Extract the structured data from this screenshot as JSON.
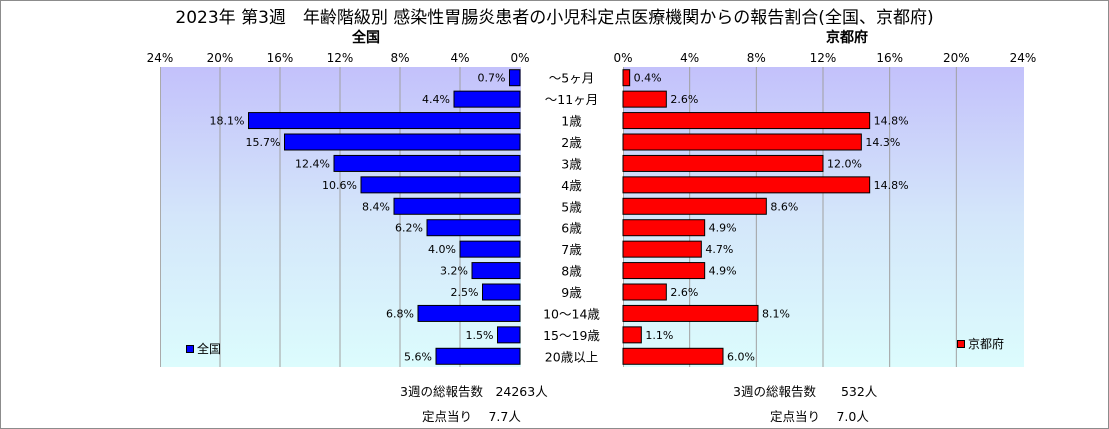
{
  "title": "2023年 第3週　年齢階級別 感染性胃腸炎患者の小児科定点医療機関からの報告割合(全国、京都府)",
  "legend": {
    "national": "全国",
    "kyoto": "京都府"
  },
  "footer": {
    "national_total": "3週の総報告数　24263人",
    "national_per": "定点当り　 7.7人",
    "kyoto_total": "3週の総報告数　　532人",
    "kyoto_per": "定点当り　 7.0人"
  },
  "chart_data": [
    {
      "type": "bar",
      "title": "全国",
      "orientation": "horizontal",
      "direction": "leftward",
      "color": "#0000ff",
      "xlim": [
        0,
        24
      ],
      "ticks": [
        "24%",
        "20%",
        "16%",
        "12%",
        "8%",
        "4%",
        "0%"
      ],
      "categories": [
        "～5ヶ月",
        "～11ヶ月",
        "1歳",
        "2歳",
        "3歳",
        "4歳",
        "5歳",
        "6歳",
        "7歳",
        "8歳",
        "9歳",
        "10～14歳",
        "15～19歳",
        "20歳以上"
      ],
      "values": [
        0.7,
        4.4,
        18.1,
        15.7,
        12.4,
        10.6,
        8.4,
        6.2,
        4.0,
        3.2,
        2.5,
        6.8,
        1.5,
        5.6
      ],
      "labels": [
        "0.7%",
        "4.4%",
        "18.1%",
        "15.7%",
        "12.4%",
        "10.6%",
        "8.4%",
        "6.2%",
        "4.0%",
        "3.2%",
        "2.5%",
        "6.8%",
        "1.5%",
        "5.6%"
      ],
      "legend_position": "bottom-left",
      "grid": true
    },
    {
      "type": "bar",
      "title": "京都府",
      "orientation": "horizontal",
      "direction": "rightward",
      "color": "#ff0000",
      "xlim": [
        0,
        24
      ],
      "ticks": [
        "0%",
        "4%",
        "8%",
        "12%",
        "16%",
        "20%",
        "24%"
      ],
      "categories": [
        "～5ヶ月",
        "～11ヶ月",
        "1歳",
        "2歳",
        "3歳",
        "4歳",
        "5歳",
        "6歳",
        "7歳",
        "8歳",
        "9歳",
        "10～14歳",
        "15～19歳",
        "20歳以上"
      ],
      "values": [
        0.4,
        2.6,
        14.8,
        14.3,
        12.0,
        14.8,
        8.6,
        4.9,
        4.7,
        4.9,
        2.6,
        8.1,
        1.1,
        6.0
      ],
      "labels": [
        "0.4%",
        "2.6%",
        "14.8%",
        "14.3%",
        "12.0%",
        "14.8%",
        "8.6%",
        "4.9%",
        "4.7%",
        "4.9%",
        "2.6%",
        "8.1%",
        "1.1%",
        "6.0%"
      ],
      "legend_position": "bottom-right",
      "grid": true
    }
  ]
}
